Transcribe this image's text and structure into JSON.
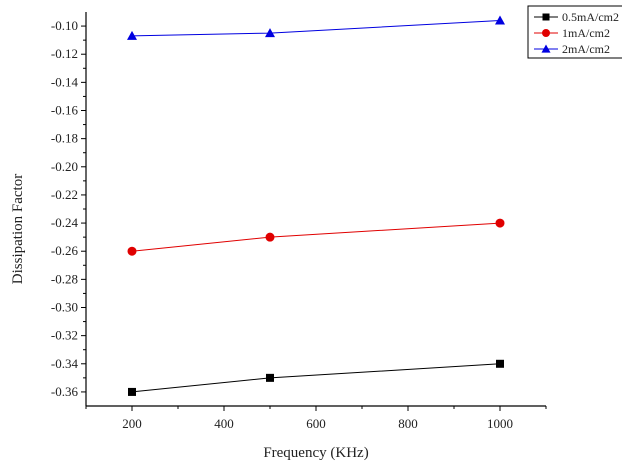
{
  "chart_data": {
    "type": "line",
    "title": "",
    "xlabel": "Frequency (KHz)",
    "ylabel": "Dissipation Factor",
    "x": [
      200,
      500,
      1000
    ],
    "xlim": [
      100,
      1100
    ],
    "ylim": [
      -0.37,
      -0.09
    ],
    "x_ticks": [
      200,
      400,
      600,
      800,
      1000
    ],
    "x_tick_labels": [
      "200",
      "400",
      "600",
      "800",
      "1000"
    ],
    "y_ticks": [
      -0.36,
      -0.34,
      -0.32,
      -0.3,
      -0.28,
      -0.26,
      -0.24,
      -0.22,
      -0.2,
      -0.18,
      -0.16,
      -0.14,
      -0.12,
      -0.1
    ],
    "y_tick_labels": [
      "-0.36",
      "-0.34",
      "-0.32",
      "-0.30",
      "-0.28",
      "-0.26",
      "-0.24",
      "-0.22",
      "-0.20",
      "-0.18",
      "-0.16",
      "-0.14",
      "-0.12",
      "-0.10"
    ],
    "grid": false,
    "legend_position": "top-right",
    "series": [
      {
        "name": "0.5mA/cm2",
        "values": [
          -0.36,
          -0.35,
          -0.34
        ],
        "color": "#000000",
        "marker": "square"
      },
      {
        "name": "1mA/cm2",
        "values": [
          -0.26,
          -0.25,
          -0.24
        ],
        "color": "#e00000",
        "marker": "circle"
      },
      {
        "name": "2mA/cm2",
        "values": [
          -0.107,
          -0.105,
          -0.096
        ],
        "color": "#0000e0",
        "marker": "triangle"
      }
    ]
  }
}
